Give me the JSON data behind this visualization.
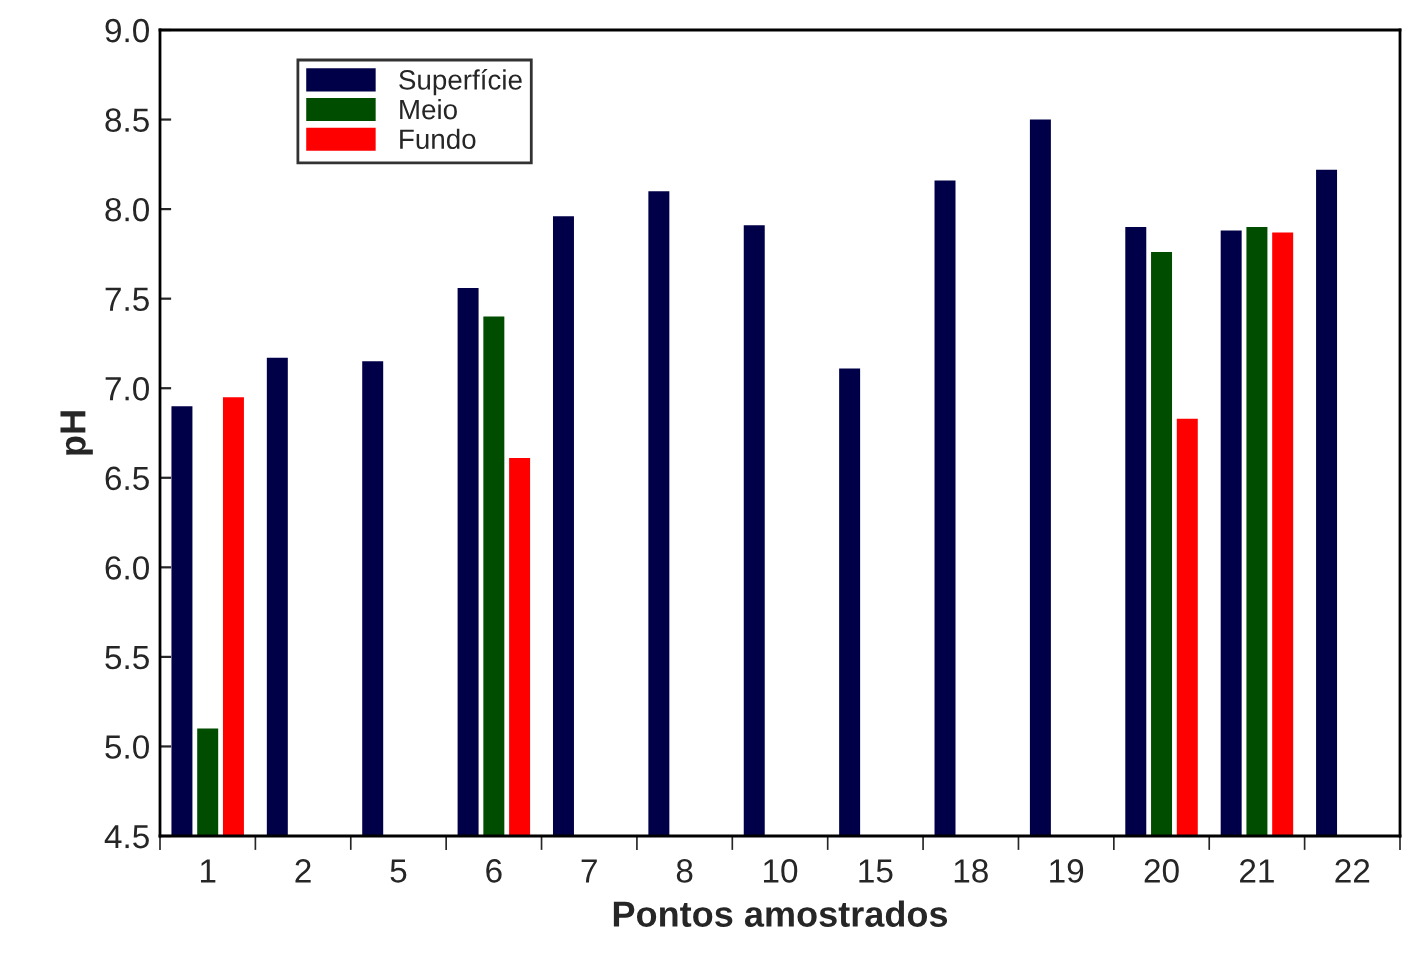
{
  "chart_data": {
    "type": "bar",
    "xlabel": "Pontos amostrados",
    "ylabel": "pH",
    "categories": [
      "1",
      "2",
      "5",
      "6",
      "7",
      "8",
      "10",
      "15",
      "18",
      "19",
      "20",
      "21",
      "22"
    ],
    "series": [
      {
        "name": "Superfície",
        "color": "#000048",
        "values": [
          6.9,
          7.17,
          7.15,
          7.56,
          7.96,
          8.1,
          7.91,
          7.11,
          8.16,
          8.5,
          7.9,
          7.88,
          8.22
        ]
      },
      {
        "name": "Meio",
        "color": "#004d00",
        "values": [
          5.1,
          null,
          null,
          7.4,
          null,
          null,
          null,
          null,
          null,
          null,
          7.76,
          7.9,
          null
        ]
      },
      {
        "name": "Fundo",
        "color": "#ff0000",
        "values": [
          6.95,
          null,
          null,
          6.61,
          null,
          null,
          null,
          null,
          null,
          null,
          6.83,
          7.87,
          null
        ]
      }
    ],
    "ylim": [
      4.5,
      9.0
    ],
    "yticks": [
      {
        "value": 4.5,
        "label": "4.5"
      },
      {
        "value": 5.0,
        "label": "5.0"
      },
      {
        "value": 5.5,
        "label": "5.5"
      },
      {
        "value": 6.0,
        "label": "6.0"
      },
      {
        "value": 6.5,
        "label": "6.5"
      },
      {
        "value": 7.0,
        "label": "7.0"
      },
      {
        "value": 7.5,
        "label": "7.5"
      },
      {
        "value": 8.0,
        "label": "8.0"
      },
      {
        "value": 8.5,
        "label": "8.5"
      },
      {
        "value": 9.0,
        "label": "9.0"
      }
    ],
    "grid": false,
    "legend": "top left"
  }
}
